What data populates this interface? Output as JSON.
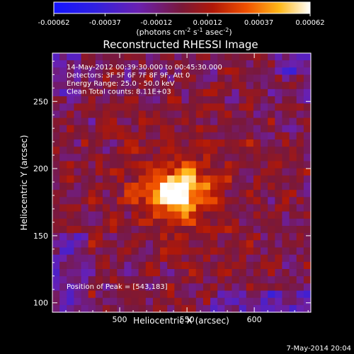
{
  "chart_data": {
    "type": "heatmap",
    "title": "Reconstructed RHESSI Image",
    "xlabel": "Heliocentric X (arcsec)",
    "ylabel": "Heliocentric Y (arcsec)",
    "xlim": [
      450,
      642
    ],
    "ylim": [
      93,
      286
    ],
    "xticks": [
      500,
      550,
      600
    ],
    "yticks": [
      100,
      150,
      200,
      250
    ],
    "colorbar": {
      "min": -0.00062,
      "max": 0.00062,
      "ticks": [
        "-0.00062",
        "-0.00037",
        "-0.00012",
        "0.00012",
        "0.00037",
        "0.00062"
      ],
      "label_pre": "(photons cm",
      "label_exp1": "-2",
      "label_mid": " s",
      "label_exp2": "-1",
      "label_mid2": " asec",
      "label_exp3": "-2",
      "label_post": ")"
    },
    "annotations": [
      "14-May-2012 00:39:30.000 to 00:45:30.000",
      "Detectors: 3F 5F 6F 7F 8F 9F, Att 0",
      "Energy Range: 25.0 - 50.0 keV",
      "Clean     Total counts: 8.11E+03"
    ],
    "peak_label": "Position of Peak = [543,183]",
    "peak": {
      "x": 543,
      "y": 183
    }
  },
  "footer": {
    "timestamp": "7-May-2014 20:04"
  }
}
